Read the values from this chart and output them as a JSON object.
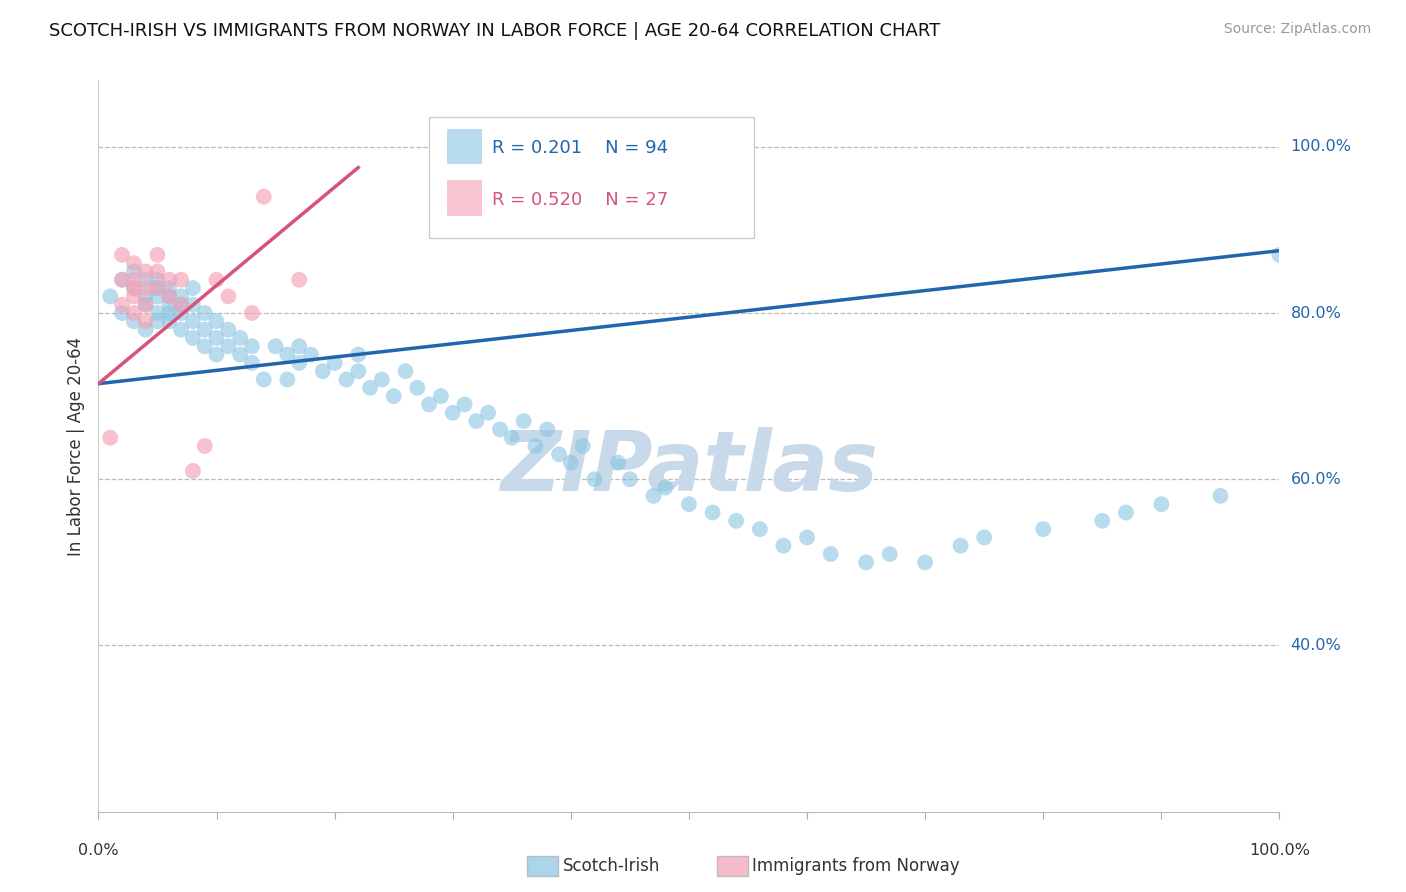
{
  "title": "SCOTCH-IRISH VS IMMIGRANTS FROM NORWAY IN LABOR FORCE | AGE 20-64 CORRELATION CHART",
  "source": "Source: ZipAtlas.com",
  "ylabel": "In Labor Force | Age 20-64",
  "ylabel_ticks": [
    "40.0%",
    "60.0%",
    "80.0%",
    "100.0%"
  ],
  "ylabel_tick_vals": [
    0.4,
    0.6,
    0.8,
    1.0
  ],
  "xlim": [
    0.0,
    1.0
  ],
  "ylim": [
    0.2,
    1.08
  ],
  "blue_color": "#89c4e1",
  "pink_color": "#f4a0b5",
  "blue_line_color": "#2166ac",
  "pink_line_color": "#d6537a",
  "legend_blue_r": "0.201",
  "legend_blue_n": "94",
  "legend_pink_r": "0.520",
  "legend_pink_n": "27",
  "watermark": "ZIPatlas",
  "watermark_color": "#c8daea",
  "blue_scatter_x": [
    0.01,
    0.02,
    0.02,
    0.03,
    0.03,
    0.03,
    0.04,
    0.04,
    0.04,
    0.04,
    0.05,
    0.05,
    0.05,
    0.05,
    0.05,
    0.06,
    0.06,
    0.06,
    0.06,
    0.06,
    0.07,
    0.07,
    0.07,
    0.07,
    0.08,
    0.08,
    0.08,
    0.08,
    0.09,
    0.09,
    0.09,
    0.1,
    0.1,
    0.1,
    0.11,
    0.11,
    0.12,
    0.12,
    0.13,
    0.13,
    0.14,
    0.15,
    0.16,
    0.16,
    0.17,
    0.17,
    0.18,
    0.19,
    0.2,
    0.21,
    0.22,
    0.22,
    0.23,
    0.24,
    0.25,
    0.26,
    0.27,
    0.28,
    0.29,
    0.3,
    0.31,
    0.32,
    0.33,
    0.34,
    0.35,
    0.36,
    0.37,
    0.38,
    0.39,
    0.4,
    0.41,
    0.42,
    0.44,
    0.45,
    0.47,
    0.48,
    0.5,
    0.52,
    0.54,
    0.56,
    0.58,
    0.6,
    0.62,
    0.65,
    0.67,
    0.7,
    0.73,
    0.75,
    0.8,
    0.85,
    0.87,
    0.9,
    0.95,
    1.0
  ],
  "blue_scatter_y": [
    0.82,
    0.84,
    0.8,
    0.83,
    0.85,
    0.79,
    0.82,
    0.84,
    0.81,
    0.78,
    0.83,
    0.8,
    0.82,
    0.84,
    0.79,
    0.83,
    0.81,
    0.79,
    0.82,
    0.8,
    0.82,
    0.8,
    0.78,
    0.81,
    0.83,
    0.79,
    0.77,
    0.81,
    0.8,
    0.78,
    0.76,
    0.79,
    0.77,
    0.75,
    0.78,
    0.76,
    0.77,
    0.75,
    0.76,
    0.74,
    0.72,
    0.76,
    0.75,
    0.72,
    0.74,
    0.76,
    0.75,
    0.73,
    0.74,
    0.72,
    0.73,
    0.75,
    0.71,
    0.72,
    0.7,
    0.73,
    0.71,
    0.69,
    0.7,
    0.68,
    0.69,
    0.67,
    0.68,
    0.66,
    0.65,
    0.67,
    0.64,
    0.66,
    0.63,
    0.62,
    0.64,
    0.6,
    0.62,
    0.6,
    0.58,
    0.59,
    0.57,
    0.56,
    0.55,
    0.54,
    0.52,
    0.53,
    0.51,
    0.5,
    0.51,
    0.5,
    0.52,
    0.53,
    0.54,
    0.55,
    0.56,
    0.57,
    0.58,
    0.87
  ],
  "pink_scatter_x": [
    0.01,
    0.02,
    0.02,
    0.02,
    0.03,
    0.03,
    0.03,
    0.03,
    0.03,
    0.04,
    0.04,
    0.04,
    0.04,
    0.05,
    0.05,
    0.05,
    0.06,
    0.06,
    0.07,
    0.07,
    0.08,
    0.09,
    0.1,
    0.11,
    0.13,
    0.14,
    0.17
  ],
  "pink_scatter_y": [
    0.65,
    0.84,
    0.87,
    0.81,
    0.83,
    0.86,
    0.84,
    0.82,
    0.8,
    0.85,
    0.83,
    0.81,
    0.79,
    0.85,
    0.83,
    0.87,
    0.84,
    0.82,
    0.81,
    0.84,
    0.61,
    0.64,
    0.84,
    0.82,
    0.8,
    0.94,
    0.84
  ],
  "blue_trendline_x": [
    0.0,
    1.0
  ],
  "blue_trendline_y": [
    0.715,
    0.875
  ],
  "pink_trendline_x": [
    0.0,
    0.22
  ],
  "pink_trendline_y": [
    0.715,
    0.975
  ]
}
